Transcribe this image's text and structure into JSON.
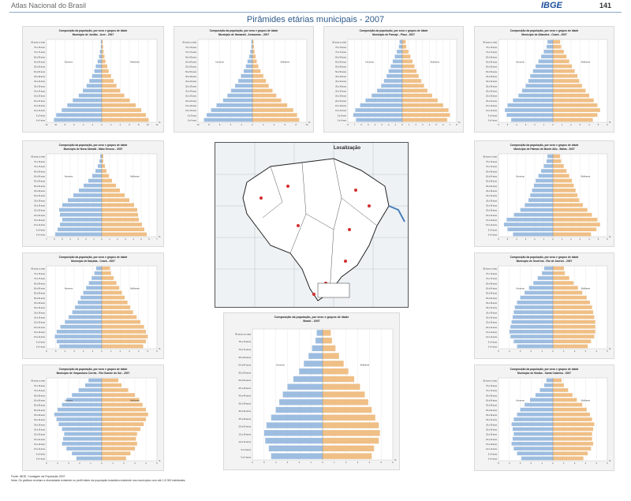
{
  "header": {
    "atlas_title": "Atlas Nacional do Brasil",
    "logo": "IBGE",
    "page_number": "141"
  },
  "main_title": "Pirâmides etárias municipais - 2007",
  "map": {
    "title": "Localização"
  },
  "footer": {
    "source": "Fonte: IBGE, Contagem da População 2007.",
    "note": "Nota: Os gráficos revelam a diversidade existente no perfil etário da população brasileira residente nos municípios com até 1,5 000 habitantes."
  },
  "colors": {
    "men": "#9dbde0",
    "women": "#efbf86",
    "panel_bg": "#f3f3f3",
    "title_blue": "#2c5a8a"
  },
  "chart_data": [
    {
      "type": "bar",
      "title": "Composição da população, por sexo e grupos de idade",
      "subtitle": "Município de Jordão - Acre - 2007",
      "labels": [
        "Homens",
        "Mulheres"
      ],
      "categories": [
        "0 a 4 anos",
        "5 a 9 anos",
        "10 a 14 anos",
        "15 a 19 anos",
        "20 a 24 anos",
        "25 a 29 anos",
        "30 a 34 anos",
        "35 a 39 anos",
        "40 a 44 anos",
        "45 a 49 anos",
        "50 a 54 anos",
        "55 a 59 anos",
        "60 a 64 anos",
        "65 a 69 anos",
        "70 a 74 anos",
        "75 a 79 anos",
        "80 anos ou mais"
      ],
      "series": [
        {
          "name": "Homens",
          "values": [
            10.4,
            9.9,
            8.7,
            7.5,
            6.3,
            5.0,
            4.1,
            3.3,
            2.7,
            2.1,
            1.6,
            1.3,
            0.9,
            0.6,
            0.4,
            0.2,
            0.2
          ]
        },
        {
          "name": "Mulheres",
          "values": [
            10.2,
            9.6,
            8.6,
            7.4,
            6.1,
            4.9,
            4.0,
            3.2,
            2.6,
            2.0,
            1.5,
            1.2,
            0.8,
            0.6,
            0.4,
            0.3,
            0.2
          ]
        }
      ],
      "xlim": [
        -12,
        12
      ]
    },
    {
      "type": "bar",
      "title": "Composição da população, por sexo e grupos de idade",
      "subtitle": "Município de Itamarati - Amazonas - 2007",
      "labels": [
        "Homens",
        "Mulheres"
      ],
      "categories": [
        "0 a 4 anos",
        "5 a 9 anos",
        "10 a 14 anos",
        "15 a 19 anos",
        "20 a 24 anos",
        "25 a 29 anos",
        "30 a 34 anos",
        "35 a 39 anos",
        "40 a 44 anos",
        "45 a 49 anos",
        "50 a 54 anos",
        "55 a 59 anos",
        "60 a 64 anos",
        "65 a 69 anos",
        "70 a 74 anos",
        "75 a 79 anos",
        "80 anos ou mais"
      ],
      "series": [
        {
          "name": "Homens",
          "values": [
            8.9,
            8.4,
            7.6,
            6.6,
            5.4,
            4.6,
            3.9,
            3.2,
            2.6,
            2.1,
            1.6,
            1.2,
            0.9,
            0.6,
            0.4,
            0.2,
            0.2
          ]
        },
        {
          "name": "Mulheres",
          "values": [
            8.6,
            8.2,
            7.5,
            6.4,
            5.3,
            4.4,
            3.7,
            3.0,
            2.5,
            2.0,
            1.5,
            1.1,
            0.8,
            0.6,
            0.4,
            0.3,
            0.2
          ]
        }
      ],
      "xlim": [
        -10,
        10
      ]
    },
    {
      "type": "bar",
      "title": "Composição da população, por sexo e grupos de idade",
      "subtitle": "Município de Faruaje - Piauí - 2007",
      "labels": [
        "Homens",
        "Mulheres"
      ],
      "categories": [
        "0 a 4 anos",
        "5 a 9 anos",
        "10 a 14 anos",
        "15 a 19 anos",
        "20 a 24 anos",
        "25 a 29 anos",
        "30 a 34 anos",
        "35 a 39 anos",
        "40 a 44 anos",
        "45 a 49 anos",
        "50 a 54 anos",
        "55 a 59 anos",
        "60 a 64 anos",
        "65 a 69 anos",
        "70 a 74 anos",
        "75 a 79 anos",
        "80 anos ou mais"
      ],
      "series": [
        {
          "name": "Homens",
          "values": [
            6.8,
            7.2,
            6.9,
            6.2,
            5.4,
            4.5,
            3.7,
            3.1,
            2.7,
            2.3,
            2.0,
            1.7,
            1.4,
            1.1,
            0.8,
            0.5,
            0.4
          ]
        },
        {
          "name": "Mulheres",
          "values": [
            6.6,
            7.0,
            6.8,
            6.0,
            5.2,
            4.4,
            3.7,
            3.2,
            2.8,
            2.4,
            2.1,
            1.8,
            1.5,
            1.2,
            0.9,
            0.6,
            0.5
          ]
        }
      ],
      "xlim": [
        -8,
        8
      ]
    },
    {
      "type": "bar",
      "title": "Composição da população, por sexo e grupos de idade",
      "subtitle": "Município de Altaneira - Ceará - 2007",
      "labels": [
        "Homens",
        "Mulheres"
      ],
      "categories": [
        "0 a 4 anos",
        "5 a 9 anos",
        "10 a 14 anos",
        "15 a 19 anos",
        "20 a 24 anos",
        "25 a 29 anos",
        "30 a 34 anos",
        "35 a 39 anos",
        "40 a 44 anos",
        "45 a 49 anos",
        "50 a 54 anos",
        "55 a 59 anos",
        "60 a 64 anos",
        "65 a 69 anos",
        "70 a 74 anos",
        "75 a 79 anos",
        "80 anos ou mais"
      ],
      "series": [
        {
          "name": "Homens",
          "values": [
            4.6,
            5.1,
            5.3,
            5.0,
            4.4,
            3.8,
            3.4,
            3.0,
            2.7,
            2.5,
            2.2,
            1.9,
            1.6,
            1.3,
            1.0,
            0.7,
            0.6
          ]
        },
        {
          "name": "Mulheres",
          "values": [
            4.4,
            4.9,
            5.2,
            4.9,
            4.5,
            4.0,
            3.6,
            3.2,
            2.9,
            2.7,
            2.4,
            2.1,
            1.8,
            1.5,
            1.2,
            0.9,
            0.8
          ]
        }
      ],
      "xlim": [
        -6,
        6
      ]
    },
    {
      "type": "bar",
      "title": "Composição da população, por sexo e grupos de idade",
      "subtitle": "Município de Nova Ubiratã - Mato Grosso - 2007",
      "labels": [
        "Homens",
        "Mulheres"
      ],
      "categories": [
        "0 a 4 anos",
        "5 a 9 anos",
        "10 a 14 anos",
        "15 a 19 anos",
        "20 a 24 anos",
        "25 a 29 anos",
        "30 a 34 anos",
        "35 a 39 anos",
        "40 a 44 anos",
        "45 a 49 anos",
        "50 a 54 anos",
        "55 a 59 anos",
        "60 a 64 anos",
        "65 a 69 anos",
        "70 a 74 anos",
        "75 a 79 anos",
        "80 anos ou mais"
      ],
      "series": [
        {
          "name": "Homens",
          "values": [
            5.9,
            5.6,
            5.3,
            5.0,
            5.3,
            5.4,
            5.0,
            4.3,
            3.6,
            2.9,
            2.3,
            1.7,
            1.2,
            0.8,
            0.5,
            0.3,
            0.2
          ]
        },
        {
          "name": "Mulheres",
          "values": [
            5.7,
            5.4,
            5.1,
            4.7,
            4.6,
            4.5,
            4.1,
            3.5,
            2.9,
            2.3,
            1.8,
            1.3,
            0.9,
            0.6,
            0.4,
            0.2,
            0.2
          ]
        }
      ],
      "xlim": [
        -7,
        7
      ]
    },
    {
      "type": "bar",
      "title": "Composição da população, por sexo e grupos de idade",
      "subtitle": "Município de Palmas de Monte Alto - Bahia - 2007",
      "labels": [
        "Homens",
        "Mulheres"
      ],
      "categories": [
        "0 a 4 anos",
        "5 a 9 anos",
        "10 a 14 anos",
        "15 a 19 anos",
        "20 a 24 anos",
        "25 a 29 anos",
        "30 a 34 anos",
        "35 a 39 anos",
        "40 a 44 anos",
        "45 a 49 anos",
        "50 a 54 anos",
        "55 a 59 anos",
        "60 a 64 anos",
        "65 a 69 anos",
        "70 a 74 anos",
        "75 a 79 anos",
        "80 anos ou mais"
      ],
      "series": [
        {
          "name": "Homens",
          "values": [
            4.4,
            5.0,
            5.4,
            5.1,
            4.3,
            3.6,
            3.1,
            2.7,
            2.5,
            2.3,
            2.1,
            1.9,
            1.6,
            1.3,
            1.0,
            0.7,
            0.6
          ]
        },
        {
          "name": "Mulheres",
          "values": [
            4.2,
            4.8,
            5.2,
            4.9,
            4.3,
            3.8,
            3.3,
            2.9,
            2.7,
            2.5,
            2.3,
            2.1,
            1.8,
            1.5,
            1.2,
            0.9,
            0.8
          ]
        }
      ],
      "xlim": [
        -6,
        6
      ]
    },
    {
      "type": "bar",
      "title": "Composição da população, por sexo e grupos de idade",
      "subtitle": "Município de Itaiçaba - Ceará - 2007",
      "labels": [
        "Homens",
        "Mulheres"
      ],
      "categories": [
        "0 a 4 anos",
        "5 a 9 anos",
        "10 a 14 anos",
        "15 a 19 anos",
        "20 a 24 anos",
        "25 a 29 anos",
        "30 a 34 anos",
        "35 a 39 anos",
        "40 a 44 anos",
        "45 a 49 anos",
        "50 a 54 anos",
        "55 a 59 anos",
        "60 a 64 anos",
        "65 a 69 anos",
        "70 a 74 anos",
        "75 a 79 anos",
        "80 anos ou mais"
      ],
      "series": [
        {
          "name": "Homens",
          "values": [
            4.6,
            4.9,
            5.1,
            4.9,
            4.5,
            4.0,
            3.6,
            3.2,
            2.9,
            2.6,
            2.3,
            2.0,
            1.7,
            1.4,
            1.1,
            0.8,
            0.6
          ]
        },
        {
          "name": "Mulheres",
          "values": [
            4.5,
            4.8,
            5.0,
            4.8,
            4.6,
            4.2,
            3.8,
            3.4,
            3.1,
            2.8,
            2.5,
            2.2,
            1.9,
            1.6,
            1.3,
            1.0,
            0.9
          ]
        }
      ],
      "xlim": [
        -6,
        6
      ]
    },
    {
      "type": "bar",
      "title": "Composição da população, por sexo e grupos de idade",
      "subtitle": "Município de Severina - Rio de Janeiro - 2007",
      "labels": [
        "Homens",
        "Mulheres"
      ],
      "categories": [
        "0 a 4 anos",
        "5 a 9 anos",
        "10 a 14 anos",
        "15 a 19 anos",
        "20 a 24 anos",
        "25 a 29 anos",
        "30 a 34 anos",
        "35 a 39 anos",
        "40 a 44 anos",
        "45 a 49 anos",
        "50 a 54 anos",
        "55 a 59 anos",
        "60 a 64 anos",
        "65 a 69 anos",
        "70 a 74 anos",
        "75 a 79 anos",
        "80 anos ou mais"
      ],
      "series": [
        {
          "name": "Homens",
          "values": [
            3.3,
            3.6,
            3.9,
            4.0,
            3.9,
            3.8,
            3.7,
            3.6,
            3.5,
            3.3,
            3.0,
            2.6,
            2.2,
            1.8,
            1.4,
            1.0,
            0.8
          ]
        },
        {
          "name": "Mulheres",
          "values": [
            3.2,
            3.5,
            3.8,
            3.9,
            3.9,
            3.9,
            3.8,
            3.7,
            3.6,
            3.4,
            3.1,
            2.7,
            2.3,
            1.9,
            1.5,
            1.1,
            1.0
          ]
        }
      ],
      "xlim": [
        -5,
        5
      ]
    },
    {
      "type": "bar",
      "title": "Composição da população, por sexo e grupos de idade",
      "subtitle": "Município de Vespasiano Corrêa - Rio Grande do Sul - 2007",
      "labels": [
        "Homens",
        "Mulheres"
      ],
      "categories": [
        "0 a 4 anos",
        "5 a 9 anos",
        "10 a 14 anos",
        "15 a 19 anos",
        "20 a 24 anos",
        "25 a 29 anos",
        "30 a 34 anos",
        "35 a 39 anos",
        "40 a 44 anos",
        "45 a 49 anos",
        "50 a 54 anos",
        "55 a 59 anos",
        "60 a 64 anos",
        "65 a 69 anos",
        "70 a 74 anos",
        "75 a 79 anos",
        "80 anos ou mais"
      ],
      "series": [
        {
          "name": "Homens",
          "values": [
            2.3,
            2.7,
            3.2,
            3.6,
            3.5,
            3.4,
            3.6,
            3.9,
            4.1,
            4.3,
            4.0,
            3.6,
            3.2,
            2.7,
            2.1,
            1.5,
            1.2
          ]
        },
        {
          "name": "Mulheres",
          "values": [
            2.2,
            2.6,
            3.0,
            3.2,
            3.1,
            3.2,
            3.5,
            3.8,
            4.0,
            4.2,
            4.0,
            3.7,
            3.4,
            3.0,
            2.4,
            1.8,
            1.5
          ]
        }
      ],
      "xlim": [
        -5,
        5
      ]
    },
    {
      "type": "bar",
      "title": "Composição da população, por sexo e grupos de idade",
      "subtitle": "Município de Ilhotas - Santa Catarina - 2007",
      "labels": [
        "Homens",
        "Mulheres"
      ],
      "categories": [
        "0 a 4 anos",
        "5 a 9 anos",
        "10 a 14 anos",
        "15 a 19 anos",
        "20 a 24 anos",
        "25 a 29 anos",
        "30 a 34 anos",
        "35 a 39 anos",
        "40 a 44 anos",
        "45 a 49 anos",
        "50 a 54 anos",
        "55 a 59 anos",
        "60 a 64 anos",
        "65 a 69 anos",
        "70 a 74 anos",
        "75 a 79 anos",
        "80 anos ou mais"
      ],
      "series": [
        {
          "name": "Homens",
          "values": [
            2.9,
            3.3,
            3.6,
            3.8,
            3.7,
            3.6,
            3.7,
            3.8,
            3.6,
            3.3,
            3.0,
            2.6,
            2.1,
            1.6,
            1.2,
            0.8,
            0.6
          ]
        },
        {
          "name": "Mulheres",
          "values": [
            2.8,
            3.2,
            3.5,
            3.7,
            3.6,
            3.6,
            3.7,
            3.8,
            3.6,
            3.4,
            3.1,
            2.7,
            2.2,
            1.8,
            1.4,
            1.0,
            0.8
          ]
        }
      ],
      "xlim": [
        -5,
        5
      ]
    },
    {
      "type": "bar",
      "title": "Composição da população, por sexo e grupos de idade",
      "subtitle": "Brasil - 2007",
      "labels": [
        "Homens",
        "Mulheres"
      ],
      "categories": [
        "0 a 4 anos",
        "5 a 9 anos",
        "10 a 14 anos",
        "15 a 19 anos",
        "20 a 24 anos",
        "25 a 29 anos",
        "30 a 34 anos",
        "35 a 39 anos",
        "40 a 44 anos",
        "45 a 49 anos",
        "50 a 54 anos",
        "55 a 59 anos",
        "60 a 64 anos",
        "65 a 69 anos",
        "70 a 74 anos",
        "75 a 79 anos",
        "80 anos ou mais"
      ],
      "series": [
        {
          "name": "Homens",
          "values": [
            4.4,
            4.6,
            4.9,
            5.0,
            4.8,
            4.4,
            4.0,
            3.7,
            3.4,
            3.0,
            2.5,
            2.0,
            1.6,
            1.2,
            0.9,
            0.6,
            0.5
          ]
        },
        {
          "name": "Mulheres",
          "values": [
            4.2,
            4.4,
            4.8,
            4.9,
            4.8,
            4.5,
            4.2,
            3.9,
            3.6,
            3.2,
            2.7,
            2.2,
            1.8,
            1.4,
            1.1,
            0.8,
            0.7
          ]
        }
      ],
      "xlim": [
        -6,
        6
      ]
    }
  ]
}
